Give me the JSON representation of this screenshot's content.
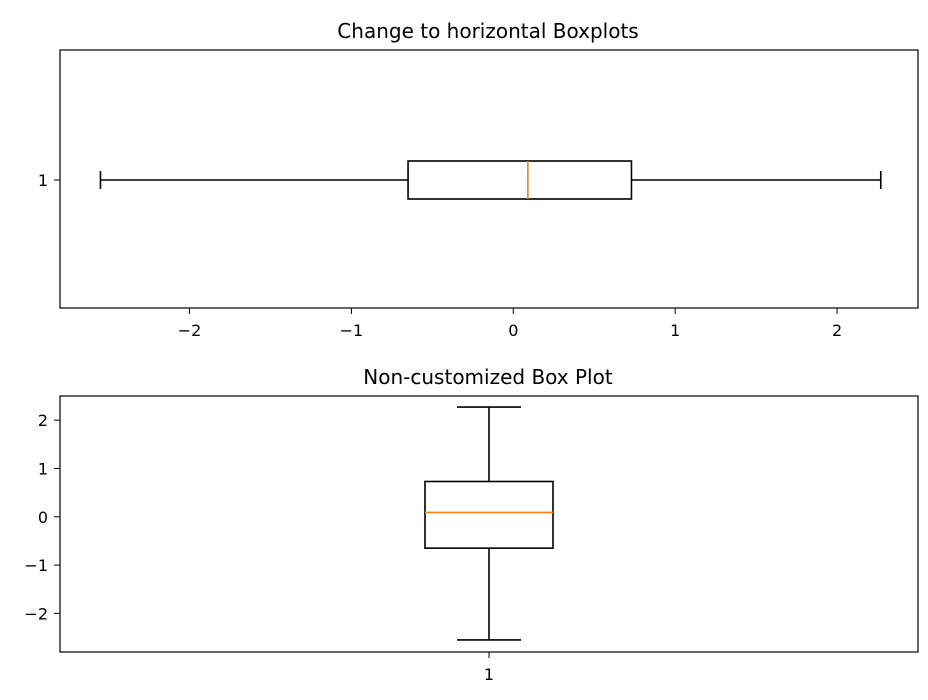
{
  "chart_data": [
    {
      "type": "boxplot",
      "orientation": "horizontal",
      "title": "Change to horizontal Boxplots",
      "categories": [
        "1"
      ],
      "xlim": [
        -2.8,
        2.5
      ],
      "x_ticks": [
        -2,
        -1,
        0,
        1,
        2
      ],
      "x_tick_labels": [
        "−2",
        "−1",
        "0",
        "1",
        "2"
      ],
      "boxes": [
        {
          "label": "1",
          "whisker_low": -2.55,
          "q1": -0.65,
          "median": 0.09,
          "q3": 0.73,
          "whisker_high": 2.27
        }
      ],
      "grid": false
    },
    {
      "type": "boxplot",
      "orientation": "vertical",
      "title": "Non-customized Box Plot",
      "categories": [
        "1"
      ],
      "ylim": [
        -2.8,
        2.5
      ],
      "y_ticks": [
        -2,
        -1,
        0,
        1,
        2
      ],
      "y_tick_labels": [
        "−2",
        "−1",
        "0",
        "1",
        "2"
      ],
      "boxes": [
        {
          "label": "1",
          "whisker_low": -2.55,
          "q1": -0.65,
          "median": 0.09,
          "q3": 0.73,
          "whisker_high": 2.27
        }
      ],
      "grid": false
    }
  ],
  "colors": {
    "median": "#ff7f0e",
    "box": "#000000"
  }
}
